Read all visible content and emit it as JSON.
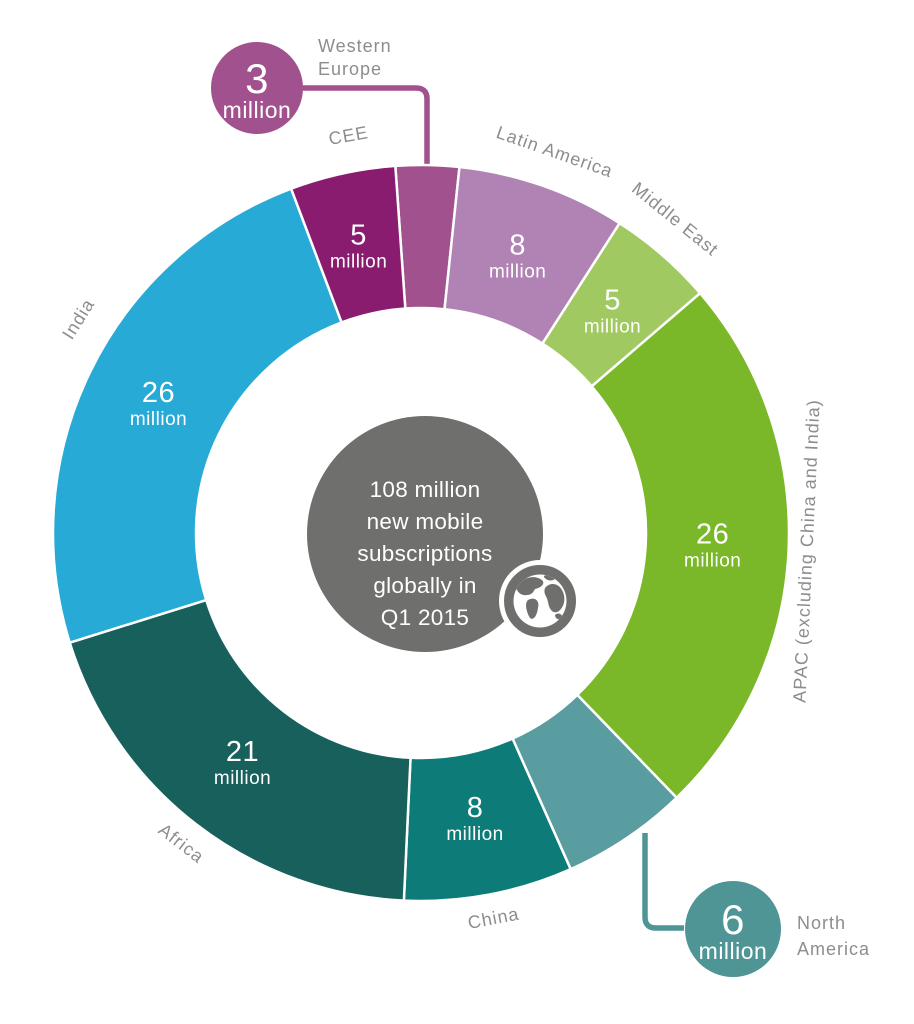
{
  "chart_data": {
    "type": "pie",
    "variant": "donut",
    "title": "108 million new mobile subscriptions globally in Q1 2015",
    "center_text_lines": [
      "108 million",
      "new mobile",
      "subscriptions",
      "globally in",
      "Q1 2015"
    ],
    "unit_label": "million",
    "total": 108,
    "start_angle_deg": -4,
    "direction": "clockwise",
    "grid": false,
    "legend_position": "labels-around-arc",
    "center_circle_color": "#6F6F6E",
    "outer_label_color": "#8D8D8D",
    "value_text_color": "#FFFFFF",
    "slice_gap_color": "#FFFFFF",
    "segments": [
      {
        "name": "Western Europe",
        "value": 3,
        "color": "#A1518D",
        "label_type": "callout",
        "callout": {
          "bubble_color": "#A1518D",
          "value_text": "3",
          "unit_text": "million",
          "label_lines": [
            "Western",
            "Europe"
          ]
        }
      },
      {
        "name": "Latin America",
        "value": 8,
        "color": "#B183B5",
        "label_type": "arc",
        "value_text": "8",
        "unit_text": "million"
      },
      {
        "name": "Middle East",
        "value": 5,
        "color": "#A0C961",
        "label_type": "arc",
        "value_text": "5",
        "unit_text": "million"
      },
      {
        "name": "APAC (excluding China and India)",
        "value": 26,
        "color": "#7AB82A",
        "label_type": "arc",
        "value_text": "26",
        "unit_text": "million"
      },
      {
        "name": "North America",
        "value": 6,
        "color": "#5A9DA0",
        "label_type": "callout",
        "callout": {
          "bubble_color": "#4F9596",
          "value_text": "6",
          "unit_text": "million",
          "label_lines": [
            "North",
            "America"
          ]
        }
      },
      {
        "name": "China",
        "value": 8,
        "color": "#0D7B77",
        "label_type": "arc",
        "value_text": "8",
        "unit_text": "million"
      },
      {
        "name": "Africa",
        "value": 21,
        "color": "#17605C",
        "label_type": "arc",
        "value_text": "21",
        "unit_text": "million"
      },
      {
        "name": "India",
        "value": 26,
        "color": "#28AAD7",
        "label_type": "arc",
        "value_text": "26",
        "unit_text": "million"
      },
      {
        "name": "CEE",
        "value": 5,
        "color": "#8A1C6F",
        "label_type": "arc",
        "value_text": "5",
        "unit_text": "million"
      }
    ],
    "icons": [
      {
        "name": "globe-icon",
        "color": "#6F6F6E"
      }
    ]
  }
}
